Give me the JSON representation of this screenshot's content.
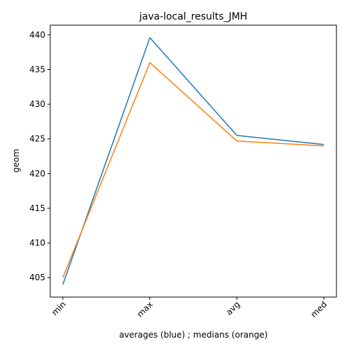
{
  "chart_data": {
    "type": "line",
    "title": "java-local_results_JMH",
    "xlabel": "averages (blue) ; medians (orange)",
    "ylabel": "geom",
    "categories": [
      "min",
      "max",
      "avg",
      "med"
    ],
    "ylim": [
      402.2,
      441.4
    ],
    "yticks": [
      405,
      410,
      415,
      420,
      425,
      430,
      435,
      440
    ],
    "grid": false,
    "series": [
      {
        "color": "#1f77b4",
        "values": [
          404.0,
          439.6,
          425.5,
          424.2
        ]
      },
      {
        "color": "#ff7f0e",
        "values": [
          405.0,
          436.0,
          424.7,
          424.0
        ]
      }
    ]
  }
}
